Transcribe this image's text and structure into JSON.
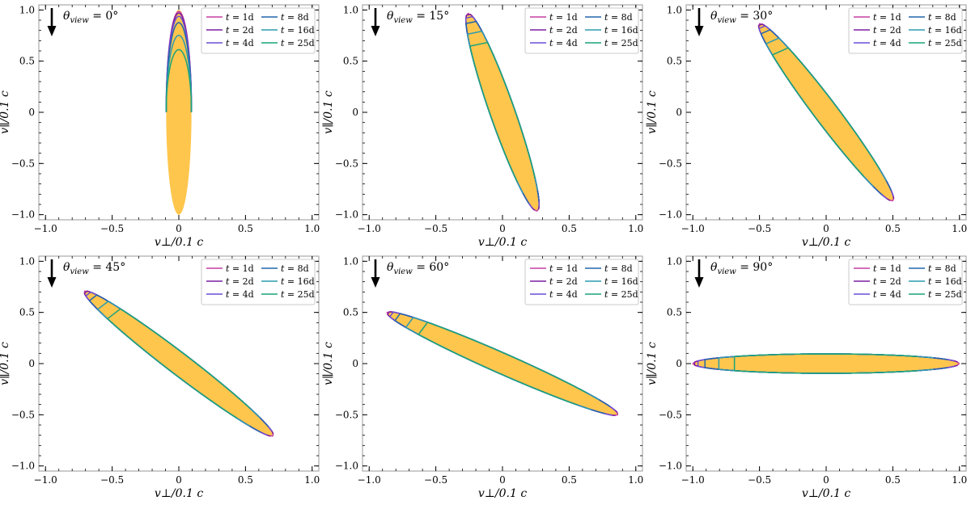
{
  "chart_data": {
    "type": "line",
    "layout": "2x3 grid",
    "xlabel": "v⊥/0.1 c",
    "ylabel": "v∥/0.1 c",
    "xlim": [
      -1.05,
      1.05
    ],
    "ylim": [
      -1.05,
      1.05
    ],
    "xticks": [
      -1.0,
      -0.5,
      0,
      0.5,
      1.0
    ],
    "yticks": [
      -1.0,
      -0.5,
      0,
      0.5,
      1.0
    ],
    "xtick_labels": [
      "−1.0",
      "−0.5",
      "0",
      "0.5",
      "1.0"
    ],
    "ytick_labels": [
      "−1.0",
      "−0.5",
      "0",
      "0.5",
      "1.0"
    ],
    "fill_color": "#ffc64d",
    "legend_position": "top-right",
    "series": [
      {
        "name": "t = 1d",
        "t_label": "t",
        "value_label": "= 1d",
        "color": "#c53fa4",
        "days": 1
      },
      {
        "name": "t = 2d",
        "t_label": "t",
        "value_label": "= 2d",
        "color": "#7b1fa2",
        "days": 2
      },
      {
        "name": "t = 4d",
        "t_label": "t",
        "value_label": "= 4d",
        "color": "#6a4fd6",
        "days": 4
      },
      {
        "name": "t = 8d",
        "t_label": "t",
        "value_label": "= 8d",
        "color": "#2166ac",
        "days": 8
      },
      {
        "name": "t = 16d",
        "t_label": "t",
        "value_label": "= 16d",
        "color": "#2b9bb0",
        "days": 16
      },
      {
        "name": "t = 25d",
        "t_label": "t",
        "value_label": "= 25d",
        "color": "#1aa37a",
        "days": 25
      }
    ],
    "panels": [
      {
        "view_label": "θview = 0°",
        "theta": "θ",
        "sub": "view",
        "value": "= 0°",
        "theta_deg": 0
      },
      {
        "view_label": "θview = 15°",
        "theta": "θ",
        "sub": "view",
        "value": "= 15°",
        "theta_deg": 15
      },
      {
        "view_label": "θview = 30°",
        "theta": "θ",
        "sub": "view",
        "value": "= 30°",
        "theta_deg": 30
      },
      {
        "view_label": "θview = 45°",
        "theta": "θ",
        "sub": "view",
        "value": "= 45°",
        "theta_deg": 45
      },
      {
        "view_label": "θview = 60°",
        "theta": "θ",
        "sub": "view",
        "value": "= 60°",
        "theta_deg": 60
      },
      {
        "view_label": "θview = 90°",
        "theta": "θ",
        "sub": "view",
        "value": "= 90°",
        "theta_deg": 90
      }
    ]
  }
}
